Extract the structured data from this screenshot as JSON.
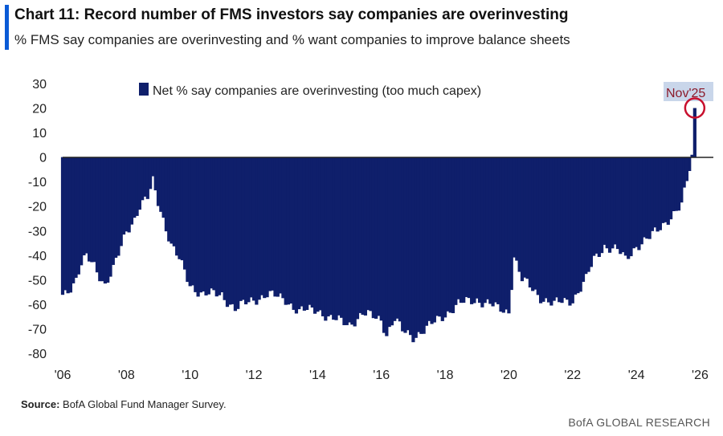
{
  "header": {
    "title": "Chart 11: Record number of FMS investors say companies are overinvesting",
    "subtitle": "% FMS say companies are overinvesting and % want companies to improve balance sheets"
  },
  "source": {
    "label": "Source:",
    "text": " BofA Global Fund Manager Survey."
  },
  "footer": {
    "brand": "BofA GLOBAL RESEARCH"
  },
  "colors": {
    "accent": "#0a5ad6",
    "series": "#0f1f6b",
    "annotation": "#c8102e",
    "annotation_fill": "#c9d6ea",
    "annotation_text": "#8b1b2b"
  },
  "chart_data": {
    "type": "bar",
    "x_start": "2006-01",
    "x_end": "2026-06",
    "x_tick_labels": [
      "'06",
      "'08",
      "'10",
      "'12",
      "'14",
      "'16",
      "'18",
      "'20",
      "'22",
      "'24",
      "'26"
    ],
    "x_tick_years": [
      2006,
      2008,
      2010,
      2012,
      2014,
      2016,
      2018,
      2020,
      2022,
      2024,
      2026
    ],
    "ylim": [
      -80,
      30
    ],
    "y_ticks": [
      30,
      20,
      10,
      0,
      -10,
      -20,
      -30,
      -40,
      -50,
      -60,
      -70,
      -80
    ],
    "legend": {
      "label": "Net % say companies are overinvesting (too much capex)",
      "position": "top-left"
    },
    "annotation": {
      "label": "Nov'25",
      "date": "2025-11",
      "value": 20
    },
    "series": [
      {
        "name": "Net % say companies are overinvesting (too much capex)",
        "anchors": [
          [
            "2006-01",
            -56
          ],
          [
            "2006-03",
            -54
          ],
          [
            "2006-06",
            -50
          ],
          [
            "2006-08",
            -44
          ],
          [
            "2006-10",
            -41
          ],
          [
            "2007-01",
            -44
          ],
          [
            "2007-03",
            -48
          ],
          [
            "2007-05",
            -52
          ],
          [
            "2007-08",
            -46
          ],
          [
            "2007-10",
            -40
          ],
          [
            "2008-01",
            -30
          ],
          [
            "2008-04",
            -25
          ],
          [
            "2008-06",
            -20
          ],
          [
            "2008-09",
            -17
          ],
          [
            "2008-11",
            -10
          ],
          [
            "2009-01",
            -18
          ],
          [
            "2009-03",
            -25
          ],
          [
            "2009-06",
            -36
          ],
          [
            "2009-09",
            -42
          ],
          [
            "2010-01",
            -52
          ],
          [
            "2010-06",
            -56
          ],
          [
            "2011-01",
            -56
          ],
          [
            "2011-06",
            -62
          ],
          [
            "2012-01",
            -58
          ],
          [
            "2012-06",
            -56
          ],
          [
            "2013-01",
            -58
          ],
          [
            "2013-06",
            -63
          ],
          [
            "2014-01",
            -62
          ],
          [
            "2014-06",
            -66
          ],
          [
            "2015-01",
            -68
          ],
          [
            "2015-06",
            -64
          ],
          [
            "2016-01",
            -66
          ],
          [
            "2016-03",
            -72
          ],
          [
            "2016-06",
            -66
          ],
          [
            "2016-09",
            -71
          ],
          [
            "2017-01",
            -73
          ],
          [
            "2017-06",
            -70
          ],
          [
            "2018-01",
            -64
          ],
          [
            "2018-06",
            -60
          ],
          [
            "2019-01",
            -58
          ],
          [
            "2019-06",
            -60
          ],
          [
            "2019-09",
            -62
          ],
          [
            "2020-01",
            -63
          ],
          [
            "2020-03",
            -40
          ],
          [
            "2020-06",
            -50
          ],
          [
            "2021-01",
            -57
          ],
          [
            "2021-06",
            -60
          ],
          [
            "2022-01",
            -58
          ],
          [
            "2022-06",
            -50
          ],
          [
            "2022-09",
            -42
          ],
          [
            "2023-01",
            -36
          ],
          [
            "2023-06",
            -38
          ],
          [
            "2023-09",
            -42
          ],
          [
            "2024-01",
            -36
          ],
          [
            "2024-06",
            -33
          ],
          [
            "2024-09",
            -30
          ],
          [
            "2025-01",
            -25
          ],
          [
            "2025-04",
            -22
          ],
          [
            "2025-06",
            -20
          ],
          [
            "2025-08",
            -10
          ],
          [
            "2025-09",
            -5
          ],
          [
            "2025-10",
            0
          ],
          [
            "2025-11",
            20
          ]
        ]
      }
    ]
  }
}
